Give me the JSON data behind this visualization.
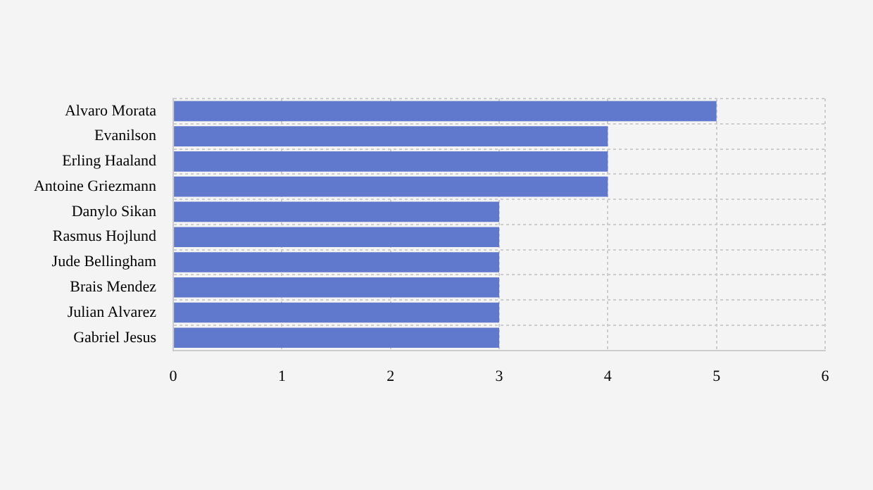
{
  "chart_data": {
    "type": "bar",
    "orientation": "horizontal",
    "categories": [
      "Alvaro Morata",
      "Evanilson",
      "Erling Haaland",
      "Antoine Griezmann",
      "Danylo Sikan",
      "Rasmus Hojlund",
      "Jude Bellingham",
      "Brais Mendez",
      "Julian Alvarez",
      "Gabriel Jesus"
    ],
    "values": [
      5,
      4,
      4,
      4,
      3,
      3,
      3,
      3,
      3,
      3
    ],
    "color": "#6079cc",
    "xlim": [
      0,
      6
    ],
    "xticks": [
      0,
      1,
      2,
      3,
      4,
      5,
      6
    ],
    "grid": true,
    "legend": false
  }
}
